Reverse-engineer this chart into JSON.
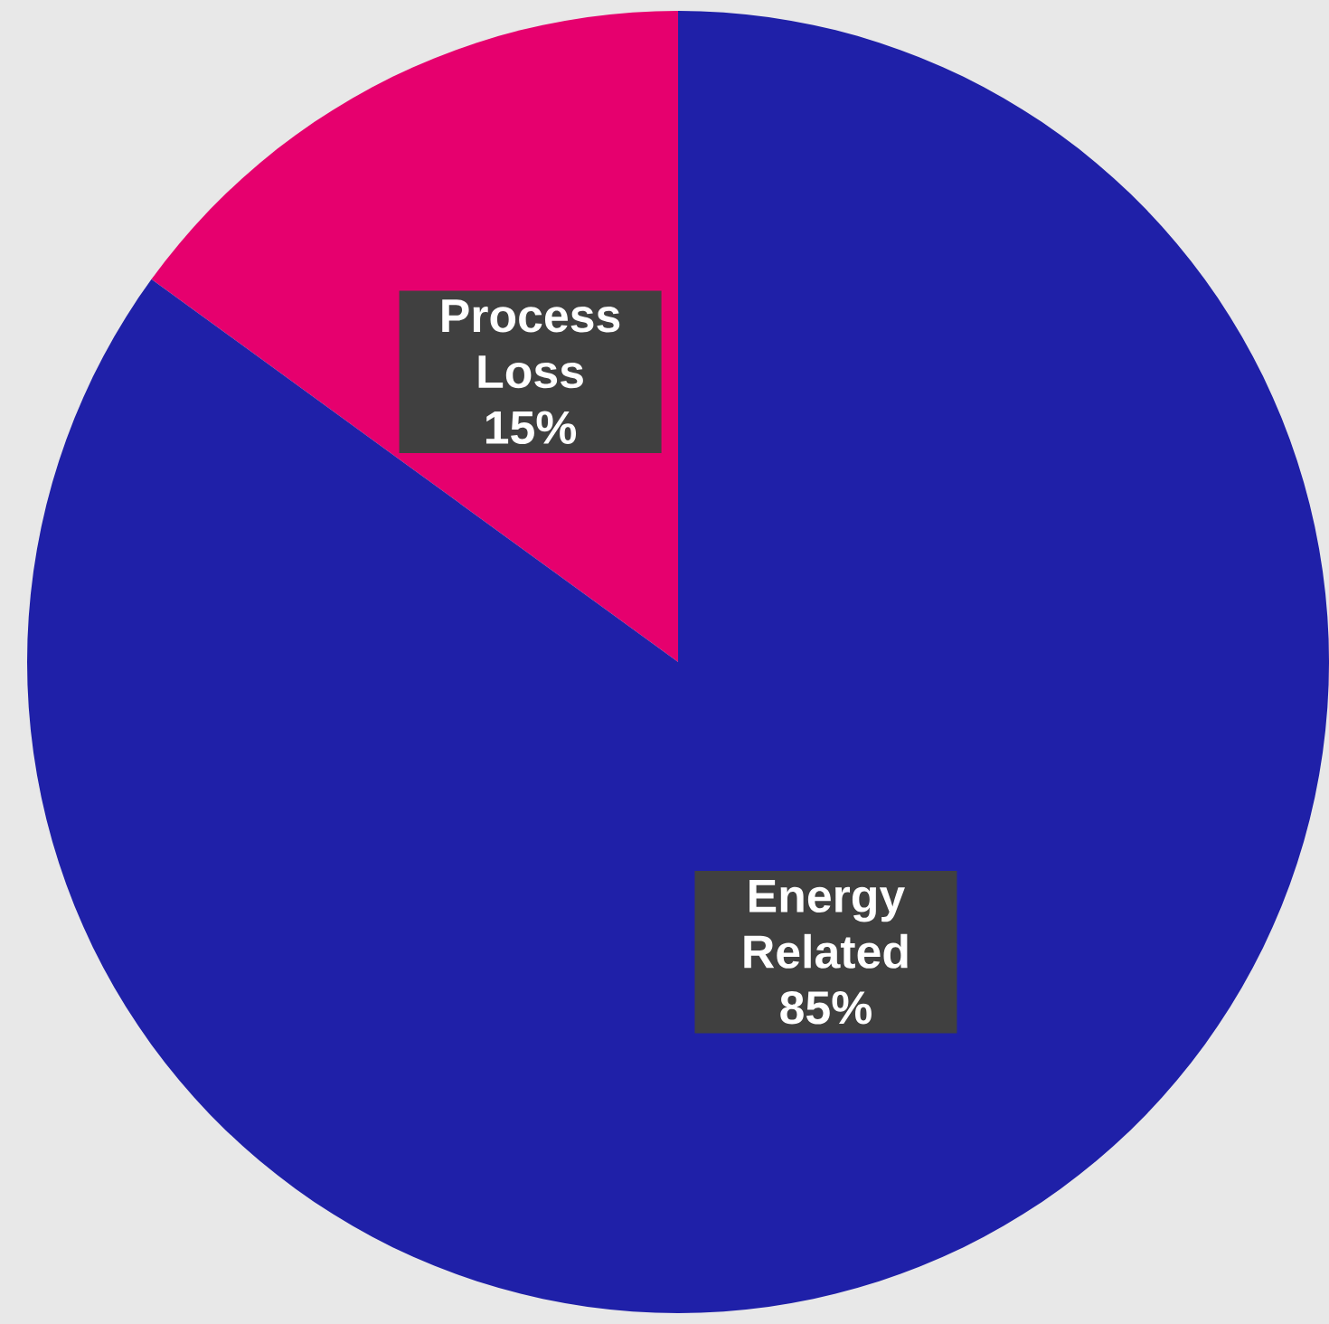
{
  "chart_data": {
    "type": "pie",
    "categories": [
      "Process Loss",
      "Energy Related"
    ],
    "values": [
      15,
      85
    ],
    "colors": [
      "#e6006e",
      "#1f20a8"
    ],
    "value_labels": [
      "15%",
      "85%"
    ]
  }
}
